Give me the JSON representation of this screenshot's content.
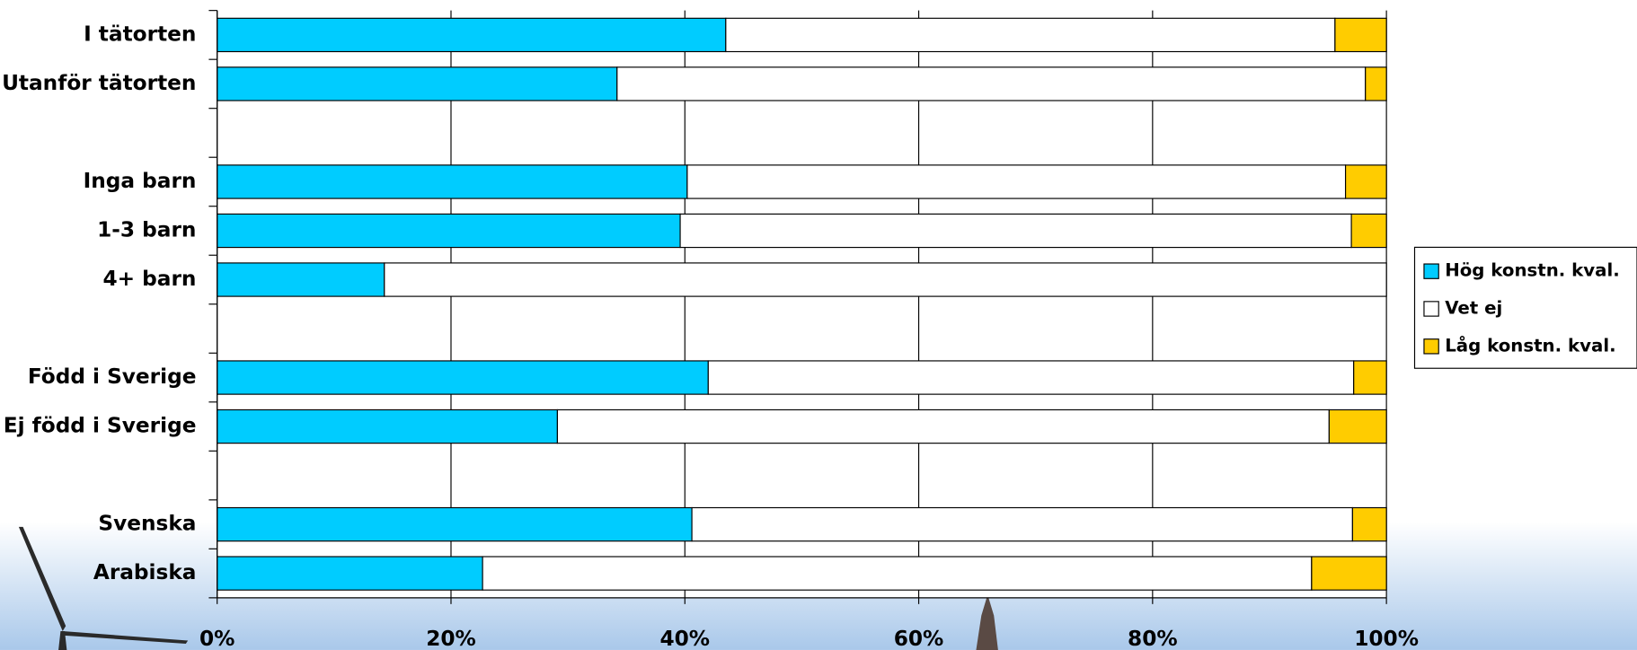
{
  "chart_data": {
    "type": "stacked-bar-horizontal",
    "categories": [
      "I tätorten",
      "Utanför tätorten",
      null,
      "Inga barn",
      "1-3 barn",
      "4+ barn",
      null,
      "Född i Sverige",
      "Ej född i Sverige",
      null,
      "Svenska",
      "Arabiska"
    ],
    "series": [
      {
        "name": "Hög konstn. kval.",
        "color": "#00ccff",
        "values": [
          43.5,
          34.2,
          null,
          40.2,
          39.6,
          14.3,
          null,
          42.0,
          29.1,
          null,
          40.6,
          22.7
        ]
      },
      {
        "name": "Vet ej",
        "color": "#ffffff",
        "values": [
          52.1,
          64.0,
          null,
          56.3,
          57.4,
          85.7,
          null,
          55.2,
          66.0,
          null,
          56.5,
          70.9
        ]
      },
      {
        "name": "Låg konstn. kval.",
        "color": "#ffcc00",
        "values": [
          4.4,
          1.8,
          null,
          3.5,
          3.0,
          0,
          null,
          2.8,
          4.9,
          null,
          2.9,
          6.4
        ]
      }
    ],
    "xlim": [
      0,
      100
    ],
    "xticks": [
      {
        "value": 0,
        "label": "0%"
      },
      {
        "value": 20,
        "label": "20%"
      },
      {
        "value": 40,
        "label": "40%"
      },
      {
        "value": 60,
        "label": "60%"
      },
      {
        "value": 80,
        "label": "80%"
      },
      {
        "value": 100,
        "label": "100%"
      }
    ],
    "grid": true
  }
}
